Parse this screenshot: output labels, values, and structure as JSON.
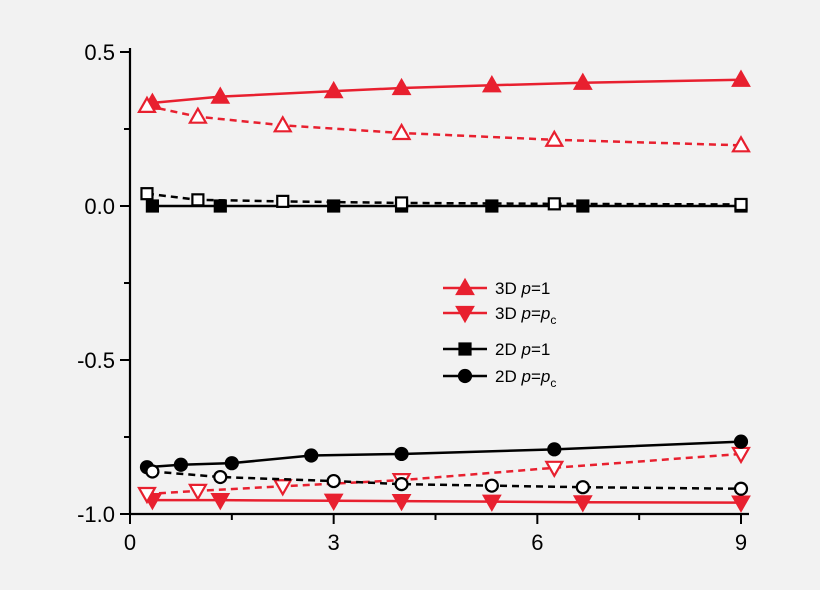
{
  "chart_data": {
    "type": "line",
    "title": "",
    "xlabel": "",
    "ylabel": "",
    "xlim": [
      0,
      9
    ],
    "ylim": [
      -1.0,
      0.5
    ],
    "x_ticks": [
      0,
      3,
      6,
      9
    ],
    "x_tick_labels": [
      "0",
      "3",
      "6",
      "9"
    ],
    "y_ticks": [
      -1.0,
      -0.5,
      0.0,
      0.5
    ],
    "y_tick_labels": [
      "-1.0",
      "-0.5",
      "0.0",
      "0.5"
    ],
    "grid": false,
    "legend": {
      "placement": "center-right",
      "entries": [
        {
          "prefix": "3D ",
          "var": "p",
          "rest": "=1",
          "sub": "",
          "marker": "triangle-up",
          "color": "#e8202f"
        },
        {
          "prefix": "3D ",
          "var": "p",
          "rest": "=p",
          "sub": "c",
          "marker": "triangle-down",
          "color": "#e8202f"
        },
        {
          "prefix": "2D ",
          "var": "p",
          "rest": "=1",
          "sub": "",
          "marker": "square",
          "color": "#000000"
        },
        {
          "prefix": "2D  ",
          "var": "p",
          "rest": "=p",
          "sub": "c",
          "marker": "circle",
          "color": "#000000"
        }
      ]
    },
    "series": [
      {
        "marker": "triangle-up",
        "filled": true,
        "dashed": false,
        "color": "#e8202f",
        "x": [
          0.33,
          1.33,
          3.0,
          4.0,
          5.33,
          6.67,
          9.0
        ],
        "y": [
          0.335,
          0.355,
          0.373,
          0.383,
          0.392,
          0.4,
          0.41
        ]
      },
      {
        "marker": "triangle-up",
        "filled": false,
        "dashed": true,
        "color": "#e8202f",
        "x": [
          0.25,
          1.0,
          2.25,
          4.0,
          6.25,
          9.0
        ],
        "y": [
          0.325,
          0.29,
          0.262,
          0.237,
          0.215,
          0.197
        ]
      },
      {
        "marker": "square",
        "filled": true,
        "dashed": false,
        "color": "#000000",
        "x": [
          0.33,
          1.33,
          3.0,
          4.0,
          5.33,
          6.67,
          9.0
        ],
        "y": [
          0.0,
          0.0,
          0.0,
          0.0,
          0.0,
          0.0,
          0.0
        ]
      },
      {
        "marker": "square",
        "filled": false,
        "dashed": true,
        "color": "#000000",
        "x": [
          0.25,
          1.0,
          2.25,
          4.0,
          6.25,
          9.0
        ],
        "y": [
          0.04,
          0.02,
          0.015,
          0.01,
          0.007,
          0.005
        ]
      },
      {
        "marker": "triangle-down",
        "filled": true,
        "dashed": false,
        "color": "#e8202f",
        "x": [
          0.33,
          1.33,
          3.0,
          4.0,
          5.33,
          6.67,
          9.0
        ],
        "y": [
          -0.955,
          -0.955,
          -0.957,
          -0.958,
          -0.96,
          -0.962,
          -0.963
        ]
      },
      {
        "marker": "triangle-down",
        "filled": false,
        "dashed": true,
        "color": "#e8202f",
        "x": [
          0.25,
          1.0,
          2.25,
          4.0,
          6.25,
          9.0
        ],
        "y": [
          -0.935,
          -0.925,
          -0.91,
          -0.89,
          -0.85,
          -0.805
        ]
      },
      {
        "marker": "circle",
        "filled": true,
        "dashed": false,
        "color": "#000000",
        "x": [
          0.25,
          0.75,
          1.5,
          2.67,
          4.0,
          6.25,
          9.0
        ],
        "y": [
          -0.848,
          -0.84,
          -0.835,
          -0.81,
          -0.805,
          -0.79,
          -0.765
        ]
      },
      {
        "marker": "circle",
        "filled": false,
        "dashed": true,
        "color": "#000000",
        "x": [
          0.33,
          1.33,
          3.0,
          4.0,
          5.33,
          6.67,
          9.0
        ],
        "y": [
          -0.862,
          -0.88,
          -0.893,
          -0.903,
          -0.908,
          -0.913,
          -0.918
        ]
      }
    ]
  }
}
